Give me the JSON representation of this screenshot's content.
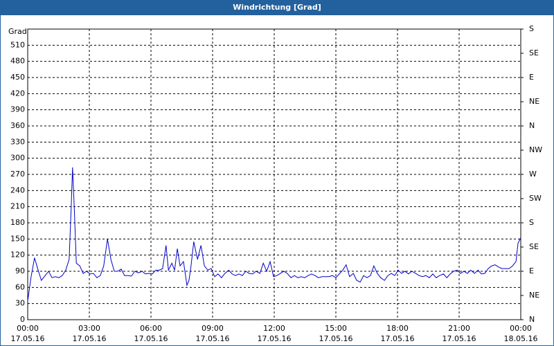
{
  "chart_data": {
    "type": "line",
    "title": "Windrichtung [Grad]",
    "y_label": "Grad",
    "x": [
      0,
      10,
      20,
      30,
      40,
      51,
      61,
      71,
      81,
      91,
      101,
      111,
      121,
      127,
      131,
      136,
      142,
      152,
      162,
      172,
      182,
      192,
      202,
      212,
      222,
      233,
      243,
      253,
      263,
      273,
      283,
      293,
      303,
      313,
      324,
      334,
      344,
      354,
      364,
      374,
      384,
      394,
      404,
      411,
      421,
      429,
      437,
      445,
      455,
      465,
      471,
      477,
      485,
      496,
      506,
      516,
      526,
      536,
      546,
      556,
      566,
      576,
      587,
      597,
      607,
      617,
      627,
      637,
      647,
      657,
      667,
      678,
      688,
      698,
      708,
      718,
      728,
      738,
      748,
      758,
      769,
      779,
      789,
      799,
      809,
      819,
      829,
      839,
      849,
      860,
      870,
      880,
      890,
      900,
      910,
      920,
      930,
      940,
      951,
      961,
      971,
      981,
      991,
      1001,
      1011,
      1021,
      1031,
      1042,
      1052,
      1062,
      1072,
      1082,
      1092,
      1102,
      1112,
      1122,
      1133,
      1143,
      1153,
      1163,
      1173,
      1183,
      1193,
      1203,
      1214,
      1224,
      1234,
      1244,
      1254,
      1264,
      1274,
      1284,
      1294,
      1305,
      1315,
      1325,
      1335,
      1345,
      1355,
      1365,
      1375,
      1385,
      1396,
      1406,
      1416,
      1426,
      1432,
      1440
    ],
    "values": [
      35,
      80,
      115,
      93,
      73,
      82,
      90,
      78,
      80,
      78,
      82,
      92,
      112,
      208,
      283,
      208,
      105,
      100,
      86,
      90,
      85,
      86,
      78,
      82,
      100,
      150,
      112,
      90,
      90,
      94,
      82,
      82,
      81,
      90,
      87,
      90,
      85,
      86,
      85,
      92,
      92,
      95,
      138,
      92,
      105,
      92,
      132,
      100,
      108,
      64,
      73,
      100,
      145,
      112,
      138,
      100,
      92,
      95,
      80,
      85,
      78,
      86,
      92,
      85,
      82,
      85,
      82,
      90,
      86,
      85,
      90,
      86,
      105,
      90,
      108,
      80,
      82,
      86,
      90,
      86,
      78,
      82,
      78,
      80,
      78,
      82,
      85,
      82,
      78,
      80,
      80,
      80,
      82,
      78,
      85,
      92,
      102,
      80,
      86,
      73,
      70,
      82,
      78,
      82,
      100,
      86,
      78,
      73,
      82,
      86,
      82,
      92,
      86,
      90,
      85,
      90,
      86,
      82,
      80,
      82,
      78,
      85,
      78,
      82,
      85,
      78,
      85,
      90,
      92,
      86,
      90,
      86,
      92,
      86,
      92,
      85,
      86,
      95,
      100,
      102,
      98,
      95,
      95,
      95,
      100,
      108,
      142,
      152
    ],
    "color": "#0000c8",
    "xlim": [
      0,
      1440
    ],
    "xticks": [
      {
        "value": 0,
        "label": "00:00"
      },
      {
        "value": 180,
        "label": "03:00"
      },
      {
        "value": 360,
        "label": "06:00"
      },
      {
        "value": 540,
        "label": "09:00"
      },
      {
        "value": 720,
        "label": "12:00"
      },
      {
        "value": 900,
        "label": "15:00"
      },
      {
        "value": 1080,
        "label": "18:00"
      },
      {
        "value": 1260,
        "label": "21:00"
      },
      {
        "value": 1440,
        "label": "00:00"
      }
    ],
    "xtick_dates": [
      "17.05.16",
      "17.05.16",
      "17.05.16",
      "17.05.16",
      "17.05.16",
      "17.05.16",
      "17.05.16",
      "17.05.16",
      "18.05.16"
    ],
    "ylim": [
      0,
      540
    ],
    "yticks": [
      0,
      30,
      60,
      90,
      120,
      150,
      180,
      210,
      240,
      270,
      300,
      330,
      360,
      390,
      420,
      450,
      480,
      510
    ],
    "y2lim": [
      0,
      540
    ],
    "y2ticks": [
      {
        "value": 0,
        "label": "N"
      },
      {
        "value": 45,
        "label": "NE"
      },
      {
        "value": 90,
        "label": "E"
      },
      {
        "value": 135,
        "label": "SE"
      },
      {
        "value": 180,
        "label": "S"
      },
      {
        "value": 225,
        "label": "SW"
      },
      {
        "value": 270,
        "label": "W"
      },
      {
        "value": 315,
        "label": "NW"
      },
      {
        "value": 360,
        "label": "N"
      },
      {
        "value": 405,
        "label": "NE"
      },
      {
        "value": 450,
        "label": "E"
      },
      {
        "value": 495,
        "label": "SE"
      },
      {
        "value": 540,
        "label": "S"
      }
    ],
    "grid": true
  }
}
